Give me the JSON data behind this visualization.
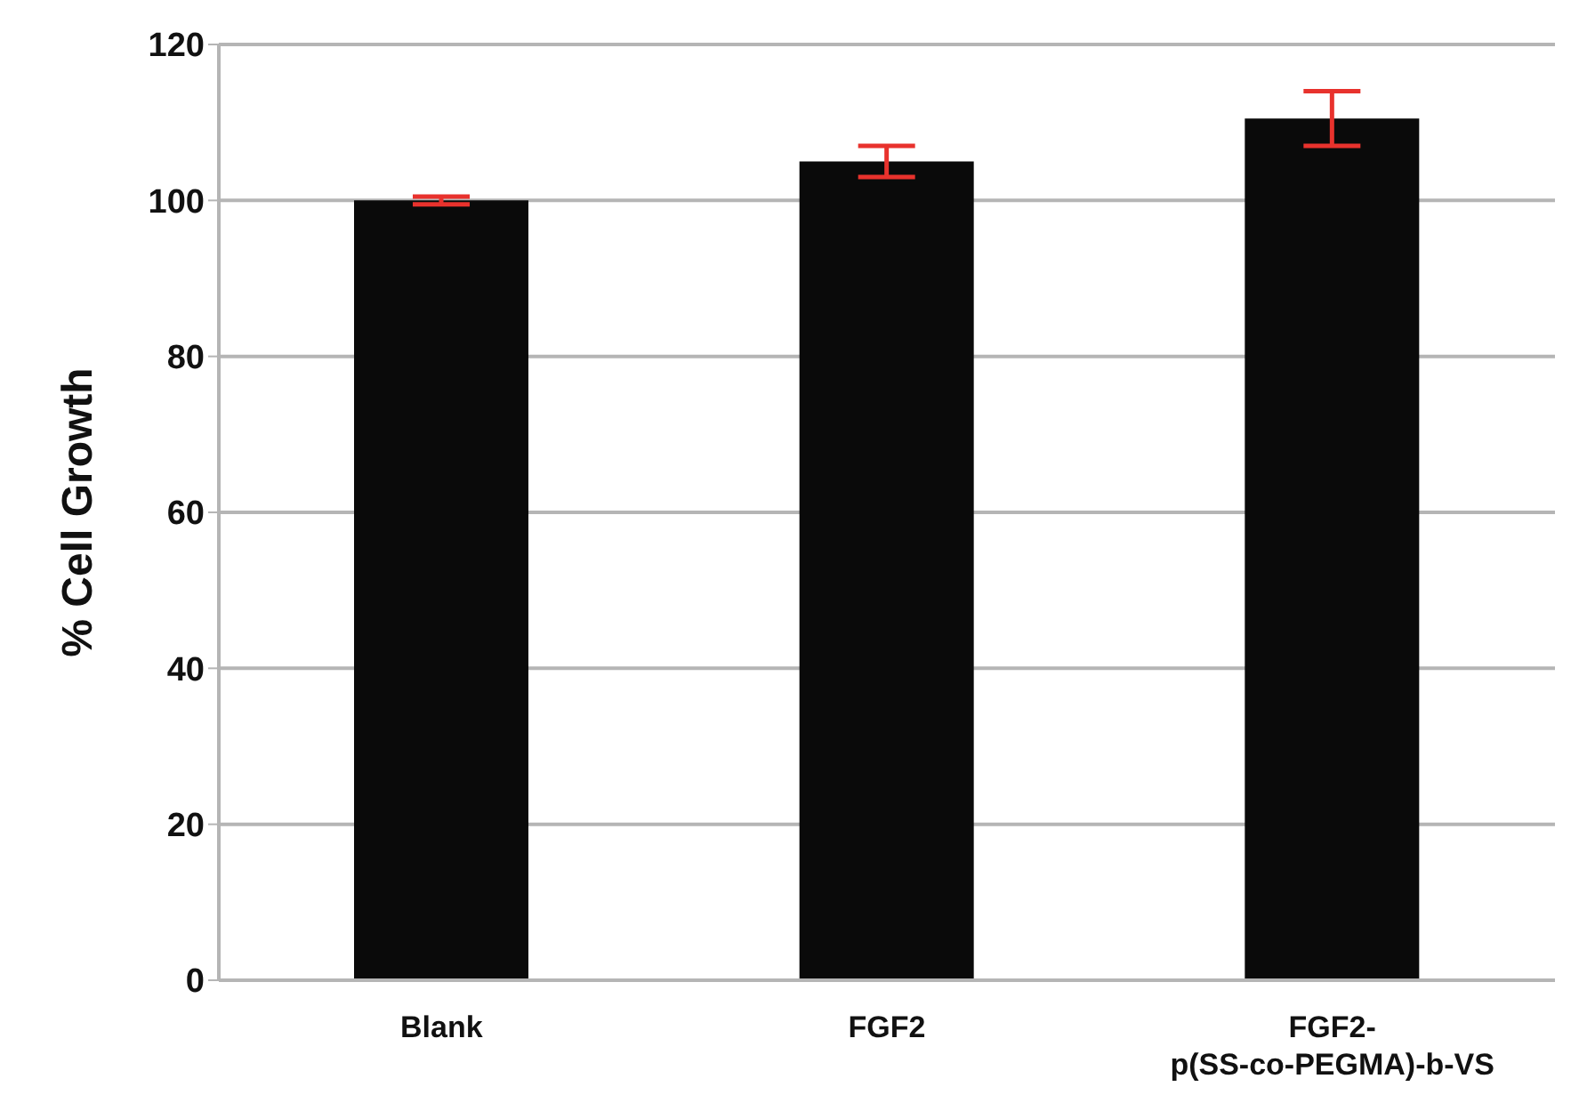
{
  "chart_data": {
    "type": "bar",
    "ylabel": "% Cell Growth",
    "categories": [
      "Blank",
      "FGF2",
      "FGF2-p(SS-co-PEGMA)-b-VS"
    ],
    "values": [
      100,
      105,
      110.5
    ],
    "errors": [
      0.5,
      2,
      3.5
    ],
    "color": "#0a0a0a",
    "ylim": [
      0,
      120
    ],
    "yticks": [
      0,
      20,
      40,
      60,
      80,
      100,
      120
    ],
    "grid": "y"
  }
}
